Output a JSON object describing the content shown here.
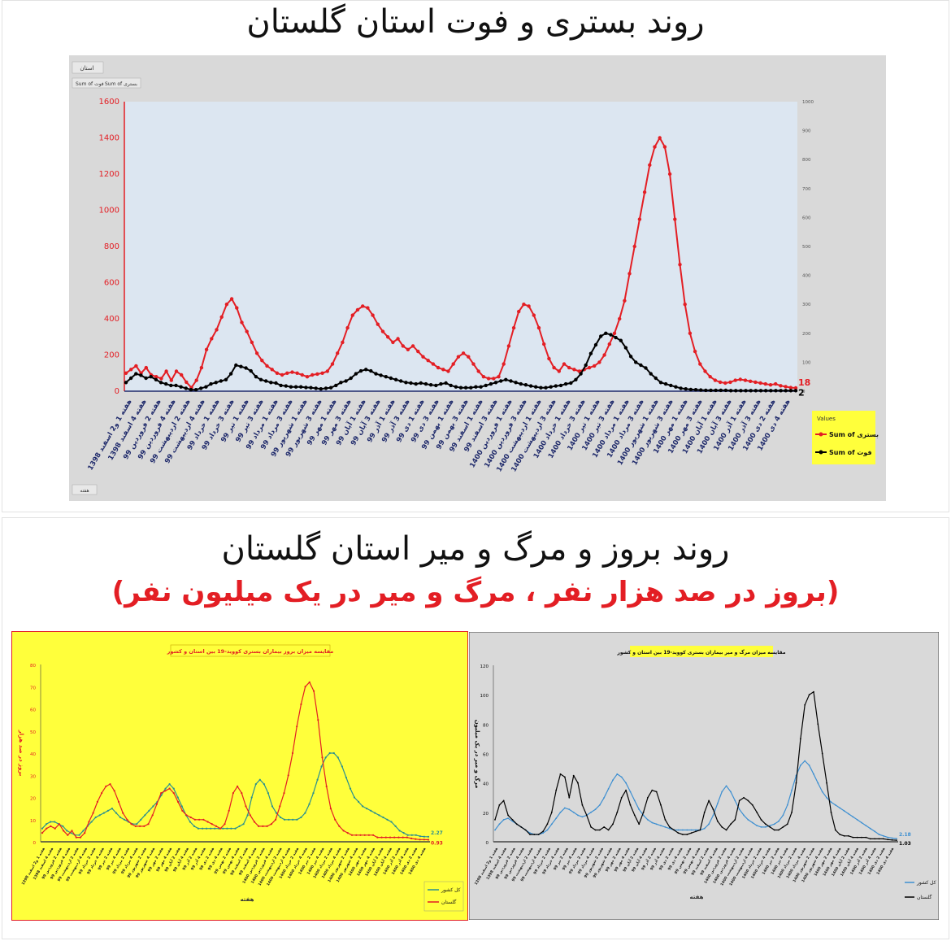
{
  "titles": {
    "top": "روند بستری و فوت استان گلستان",
    "bottom": "روند بروز و مرگ و میر استان گلستان",
    "bottom_sub": "(بروز در صد هزار نفر ، مرگ و میر در یک میلیون نفر)"
  },
  "colors": {
    "red": "#e31e24",
    "black": "#000000",
    "blue": "#3d8fd1",
    "teal": "#2a8f8f",
    "yellow_bg": "#ffff3b",
    "plot_bg": "#dce6f1",
    "gray_bg": "#d9d9d9",
    "navy": "#1f2a6b"
  },
  "chart_data": [
    {
      "type": "line",
      "title": "روند بستری و فوت استان گلستان",
      "filter_label": "استان",
      "pivot_buttons": [
        "Sum of فوت",
        "Sum of بستری"
      ],
      "axis_button": "هفته",
      "legend_title": "Values",
      "legend_position": "right",
      "ylim": [
        0,
        1600
      ],
      "y_ticks": [
        "0",
        "200",
        "400",
        "600",
        "800",
        "1000",
        "1200",
        "1400",
        "1600"
      ],
      "y2lim": [
        0,
        1000
      ],
      "y2_ticks": [
        "0",
        "100",
        "200",
        "300",
        "400",
        "500",
        "600",
        "700",
        "800",
        "900",
        "1000"
      ],
      "x_labels": [
        "هفته 1 و2 اسفند 1398",
        "هفته 4 اسفند 1398",
        "هفته 2 فروردین 99",
        "هفته 4 فروردین 99",
        "هفته 2 اردیبهشت 99",
        "هفته 4 اردیبهشت 99",
        "هفته 1 خرداد 99",
        "هفته 3 خرداد 99",
        "هفته 1 تیر 99",
        "هفته 3 تیر 99",
        "هفته 1 مرداد 99",
        "هفته 3 مرداد 99",
        "هفته 1 شهریور 99",
        "هفته 3 شهریور 99",
        "هفته 1 مهر 99",
        "هفته 3 مهر 99",
        "هفته 1 آبان 99",
        "هفته 3 آبان 99",
        "هفته 1 آذر 99",
        "هفته 3 آذر 99",
        "هفته 1 دی 99",
        "هفته 3 دی 99",
        "هفته 1 بهمن 99",
        "هفته 3 بهمن 99",
        "هفته 1 اسفند 99",
        "هفته 3 اسفند 99",
        "هفته 1 فروردین 1400",
        "هفته 3 فروردین 1400",
        "هفته 1 اردیبهشت 1400",
        "هفته 3 اردیبهشت 1400",
        "هفته 1 خرداد 1400",
        "هفته 3 خرداد 1400",
        "هفته 1 تیر 1400",
        "هفته 3 تیر 1400",
        "هفته 1 مرداد 1400",
        "هفته 3 مرداد 1400",
        "هفته 1 شهریور 1400",
        "هفته 3 شهریور 1400",
        "هفته 1 مهر 1400",
        "هفته 3 مهر 1400",
        "هفته 1 آبان 1400",
        "هفته 3 آبان 1400",
        "هفته 1 آذر 1400",
        "هفته 3 آذر 1400",
        "هفته 2 دی 1400",
        "هفته 4 دی 1400"
      ],
      "series": [
        {
          "name": "Sum of بستری",
          "axis": "left",
          "color": "#e31e24",
          "end_label": "18",
          "values": [
            100,
            120,
            140,
            100,
            130,
            90,
            80,
            70,
            110,
            60,
            110,
            90,
            50,
            20,
            60,
            130,
            230,
            290,
            340,
            410,
            480,
            510,
            460,
            380,
            330,
            270,
            210,
            170,
            140,
            120,
            100,
            90,
            100,
            105,
            100,
            90,
            80,
            90,
            95,
            100,
            110,
            150,
            210,
            270,
            350,
            420,
            450,
            470,
            460,
            420,
            370,
            330,
            300,
            270,
            290,
            250,
            230,
            250,
            220,
            190,
            170,
            150,
            130,
            120,
            110,
            150,
            190,
            210,
            190,
            150,
            110,
            80,
            70,
            70,
            80,
            150,
            250,
            350,
            440,
            480,
            470,
            420,
            350,
            260,
            180,
            130,
            110,
            150,
            130,
            120,
            110,
            120,
            130,
            140,
            160,
            200,
            260,
            320,
            400,
            500,
            650,
            800,
            950,
            1100,
            1250,
            1350,
            1400,
            1350,
            1200,
            950,
            700,
            480,
            320,
            220,
            150,
            110,
            80,
            60,
            50,
            45,
            50,
            60,
            65,
            60,
            55,
            50,
            45,
            40,
            35,
            40,
            30,
            25,
            20,
            18
          ]
        },
        {
          "name": "Sum of فوت",
          "axis": "right",
          "color": "#000000",
          "end_label": "2",
          "values": [
            30,
            45,
            60,
            55,
            45,
            50,
            40,
            30,
            25,
            20,
            20,
            15,
            10,
            5,
            5,
            10,
            15,
            25,
            30,
            35,
            40,
            60,
            90,
            85,
            80,
            70,
            50,
            40,
            35,
            30,
            28,
            20,
            18,
            15,
            15,
            15,
            13,
            12,
            10,
            8,
            10,
            12,
            20,
            30,
            35,
            45,
            60,
            70,
            75,
            70,
            60,
            55,
            50,
            45,
            40,
            35,
            30,
            28,
            25,
            28,
            25,
            22,
            20,
            25,
            28,
            20,
            15,
            12,
            12,
            12,
            15,
            15,
            20,
            25,
            30,
            35,
            40,
            35,
            30,
            25,
            22,
            18,
            15,
            12,
            12,
            15,
            18,
            20,
            25,
            28,
            40,
            60,
            90,
            130,
            160,
            190,
            200,
            195,
            185,
            175,
            150,
            120,
            100,
            90,
            80,
            60,
            45,
            30,
            25,
            20,
            15,
            10,
            8,
            6,
            5,
            4,
            3,
            3,
            3,
            3,
            3,
            2,
            2,
            2,
            2,
            2,
            2,
            2,
            2,
            2,
            2,
            2,
            2,
            2,
            2
          ]
        }
      ]
    },
    {
      "type": "line",
      "title": "مقایسه میزان بروز بیماران بستری کووید-19 بین استان و کشور",
      "ylabel": "بروز در صد هزار",
      "xlabel": "هفته",
      "ylim": [
        0,
        80
      ],
      "y_ticks": [
        "0",
        "10",
        "20",
        "30",
        "40",
        "50",
        "60",
        "70",
        "80"
      ],
      "legend_position": "bottom-right",
      "x_labels": [
        "هفته 1 و2 اسفند 1398",
        "هفته 4 اسفند 1398",
        "هفته 2 فروردین 99",
        "هفته 4 فروردین 99",
        "هفته 2 اردیبهشت 99",
        "هفته 4 اردیبهشت 99",
        "هفته 2 خرداد 99",
        "هفته 4 خرداد 99",
        "هفته 2 تیر 99",
        "هفته 4 تیر 99",
        "هفته 2 مرداد 99",
        "هفته 4 مرداد 99",
        "هفته 2 شهریور 99",
        "هفته 4 شهریور 99",
        "هفته 2 مهر 99",
        "هفته 4 مهر 99",
        "هفته 2 آبان 99",
        "هفته 4 آبان 99",
        "هفته 2 آذر 99",
        "هفته 4 آذر 99",
        "هفته 2 دی 99",
        "هفته 4 دی 99",
        "هفته 2 بهمن 99",
        "هفته 4 بهمن 99",
        "هفته 2 اسفند 99",
        "هفته 4 اسفند 99",
        "هفته 2 فروردین 1400",
        "هفته 4 فروردین 1400",
        "هفته 2 اردیبهشت 1400",
        "هفته 4 اردیبهشت 1400",
        "هفته 2 خرداد 1400",
        "هفته 4 خرداد 1400",
        "هفته 2 تیر 1400",
        "هفته 4 تیر 1400",
        "هفته 2 مرداد 1400",
        "هفته 4 مرداد 1400",
        "هفته 2 شهریور 1400",
        "هفته 4 شهریور 1400",
        "هفته 2 مهر 1400",
        "هفته 4 مهر 1400",
        "هفته 2 آبان 1400",
        "هفته 4 آبان 1400",
        "هفته 2 آذر 1400",
        "هفته 4 آذر 1400",
        "هفته 2 دی 1400",
        "هفته 4 دی 1400"
      ],
      "series": [
        {
          "name": "کل کشور",
          "color": "#2a8f8f",
          "end_label": "2.27",
          "values": [
            6,
            8,
            9,
            9,
            8,
            7,
            5,
            4,
            3,
            3,
            5,
            7,
            9,
            11,
            12,
            13,
            14,
            15,
            13,
            11,
            10,
            9,
            8,
            8,
            10,
            12,
            14,
            16,
            18,
            21,
            24,
            26,
            24,
            20,
            16,
            12,
            9,
            7,
            6,
            6,
            6,
            6,
            6,
            6,
            6,
            6,
            6,
            6,
            7,
            8,
            12,
            20,
            26,
            28,
            26,
            22,
            16,
            13,
            11,
            10,
            10,
            10,
            10,
            11,
            13,
            17,
            22,
            28,
            34,
            38,
            40,
            40,
            38,
            34,
            29,
            24,
            20,
            18,
            16,
            15,
            14,
            13,
            12,
            11,
            10,
            9,
            7,
            5,
            4,
            3,
            3,
            3,
            2.5,
            2.3,
            2.27
          ]
        },
        {
          "name": "گلستان",
          "color": "#e31e24",
          "end_label": "0.93",
          "values": [
            4,
            6,
            7,
            6,
            8,
            5,
            3,
            5,
            2,
            2,
            4,
            9,
            13,
            18,
            22,
            25,
            26,
            23,
            18,
            13,
            10,
            8,
            7,
            7,
            7,
            8,
            12,
            17,
            22,
            23,
            24,
            22,
            18,
            14,
            12,
            11,
            10,
            10,
            10,
            9,
            8,
            7,
            6,
            8,
            14,
            22,
            25,
            22,
            16,
            12,
            9,
            7,
            7,
            7,
            8,
            10,
            16,
            22,
            30,
            40,
            52,
            62,
            70,
            72,
            68,
            55,
            38,
            25,
            15,
            10,
            7,
            5,
            4,
            3,
            3,
            3,
            3,
            3,
            3,
            2,
            2,
            2,
            2,
            2,
            2,
            2,
            2,
            1.5,
            1.2,
            1,
            1,
            0.93
          ]
        }
      ]
    },
    {
      "type": "line",
      "title": "مقایسه میزان مرگ و میر بیماران بستری کووید-19 بین استان و کشور",
      "ylabel": "مرگ و میر در یک میلیون",
      "xlabel": "هفته",
      "ylim": [
        0,
        120
      ],
      "y_ticks": [
        "0",
        "20",
        "40",
        "60",
        "80",
        "100",
        "120"
      ],
      "legend_position": "bottom-right",
      "x_labels": [
        "هفته 1 و2 اسفند 1398",
        "هفته 4 اسفند 1398",
        "هفته 2 فروردین 99",
        "هفته 4 فروردین 99",
        "هفته 2 اردیبهشت 99",
        "هفته 4 اردیبهشت 99",
        "هفته 2 خرداد 99",
        "هفته 4 خرداد 99",
        "هفته 2 تیر 99",
        "هفته 4 تیر 99",
        "هفته 2 مرداد 99",
        "هفته 4 مرداد 99",
        "هفته 2 شهریور 99",
        "هفته 4 شهریور 99",
        "هفته 2 مهر 99",
        "هفته 4 مهر 99",
        "هفته 2 آبان 99",
        "هفته 4 آبان 99",
        "هفته 2 آذر 99",
        "هفته 4 آذر 99",
        "هفته 2 دی 99",
        "هفته 4 دی 99",
        "هفته 2 بهمن 99",
        "هفته 4 بهمن 99",
        "هفته 2 اسفند 99",
        "هفته 4 اسفند 99",
        "هفته 2 فروردین 1400",
        "هفته 4 فروردین 1400",
        "هفته 2 اردیبهشت 1400",
        "هفته 4 اردیبهشت 1400",
        "هفته 2 خرداد 1400",
        "هفته 4 خرداد 1400",
        "هفته 2 تیر 1400",
        "هفته 4 تیر 1400",
        "هفته 2 مرداد 1400",
        "هفته 4 مرداد 1400",
        "هفته 2 شهریور 1400",
        "هفته 4 شهریور 1400",
        "هفته 2 مهر 1400",
        "هفته 4 مهر 1400",
        "هفته 2 آبان 1400",
        "هفته 4 آبان 1400",
        "هفته 2 آذر 1400",
        "هفته 4 آذر 1400",
        "هفته 2 دی 1400",
        "هفته 4 دی 1400"
      ],
      "series": [
        {
          "name": "کل کشور",
          "color": "#3d8fd1",
          "end_label": "2.18",
          "values": [
            8,
            12,
            15,
            16,
            14,
            12,
            10,
            8,
            6,
            5,
            5,
            6,
            8,
            12,
            16,
            20,
            23,
            22,
            20,
            18,
            17,
            18,
            20,
            22,
            25,
            30,
            36,
            42,
            46,
            44,
            40,
            34,
            28,
            22,
            18,
            15,
            13,
            12,
            11,
            10,
            9,
            8,
            8,
            8,
            8,
            8,
            8,
            8,
            9,
            12,
            18,
            26,
            34,
            38,
            34,
            28,
            22,
            18,
            15,
            13,
            11,
            10,
            10,
            11,
            12,
            14,
            18,
            25,
            35,
            45,
            52,
            55,
            52,
            46,
            40,
            34,
            30,
            27,
            25,
            23,
            21,
            19,
            17,
            15,
            13,
            11,
            9,
            7,
            5,
            4,
            3,
            2.5,
            2.18
          ]
        },
        {
          "name": "گلستان",
          "color": "#000000",
          "end_label": "1.03",
          "values": [
            15,
            25,
            28,
            18,
            15,
            12,
            10,
            8,
            5,
            5,
            5,
            7,
            12,
            20,
            35,
            46,
            44,
            30,
            45,
            40,
            25,
            18,
            10,
            8,
            8,
            10,
            8,
            12,
            20,
            30,
            35,
            25,
            18,
            12,
            20,
            30,
            35,
            34,
            25,
            15,
            10,
            8,
            6,
            5,
            5,
            6,
            7,
            8,
            20,
            28,
            22,
            14,
            10,
            8,
            12,
            15,
            28,
            30,
            28,
            25,
            20,
            15,
            12,
            10,
            8,
            8,
            10,
            12,
            20,
            40,
            70,
            93,
            100,
            102,
            80,
            60,
            40,
            20,
            8,
            5,
            4,
            4,
            3,
            3,
            3,
            3,
            2,
            2,
            2,
            2,
            1.5,
            1.2,
            1.03
          ]
        }
      ]
    }
  ]
}
